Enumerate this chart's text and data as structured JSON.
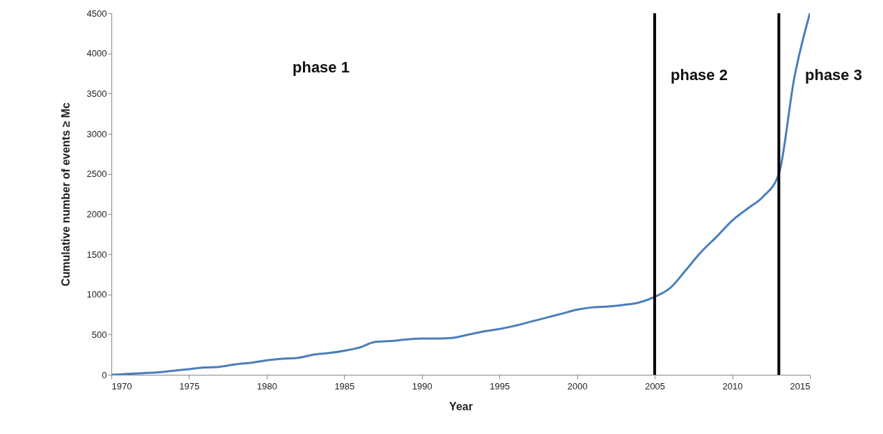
{
  "chart_data": {
    "type": "line",
    "xlabel": "Year",
    "ylabel": "Cumulative number of events ≥ Mc",
    "x": [
      1970,
      1971,
      1972,
      1973,
      1974,
      1975,
      1976,
      1977,
      1978,
      1979,
      1980,
      1981,
      1982,
      1983,
      1984,
      1985,
      1986,
      1987,
      1988,
      1989,
      1990,
      1991,
      1992,
      1993,
      1994,
      1995,
      1996,
      1997,
      1998,
      1999,
      2000,
      2001,
      2002,
      2003,
      2004,
      2005,
      2006,
      2007,
      2008,
      2009,
      2010,
      2011,
      2012,
      2013,
      2014,
      2015
    ],
    "series": [
      {
        "color": "#4a7ebb",
        "values": [
          0,
          10,
          20,
          30,
          50,
          70,
          90,
          100,
          130,
          150,
          180,
          200,
          210,
          250,
          270,
          300,
          340,
          410,
          420,
          440,
          450,
          450,
          460,
          500,
          540,
          570,
          610,
          660,
          710,
          760,
          810,
          840,
          850,
          870,
          900,
          970,
          1080,
          1300,
          1530,
          1720,
          1920,
          2070,
          2220,
          2500,
          3700,
          4500
        ]
      }
    ],
    "xlim": [
      1970,
      2015
    ],
    "xticks": [
      1970,
      1975,
      1980,
      1985,
      1990,
      1995,
      2000,
      2005,
      2010,
      2015
    ],
    "ylim": [
      0,
      4500
    ],
    "yticks": [
      0,
      500,
      1000,
      1500,
      2000,
      2500,
      3000,
      3500,
      4000,
      4500
    ],
    "grid": false,
    "marker": "none",
    "line_style": "solid",
    "ref_lines": [
      {
        "axis": "x",
        "value": 2005,
        "color": "#000000"
      },
      {
        "axis": "x",
        "value": 2013,
        "color": "#000000"
      }
    ],
    "annotations": [
      "phase 1",
      "phase 2",
      "phase 3"
    ]
  }
}
